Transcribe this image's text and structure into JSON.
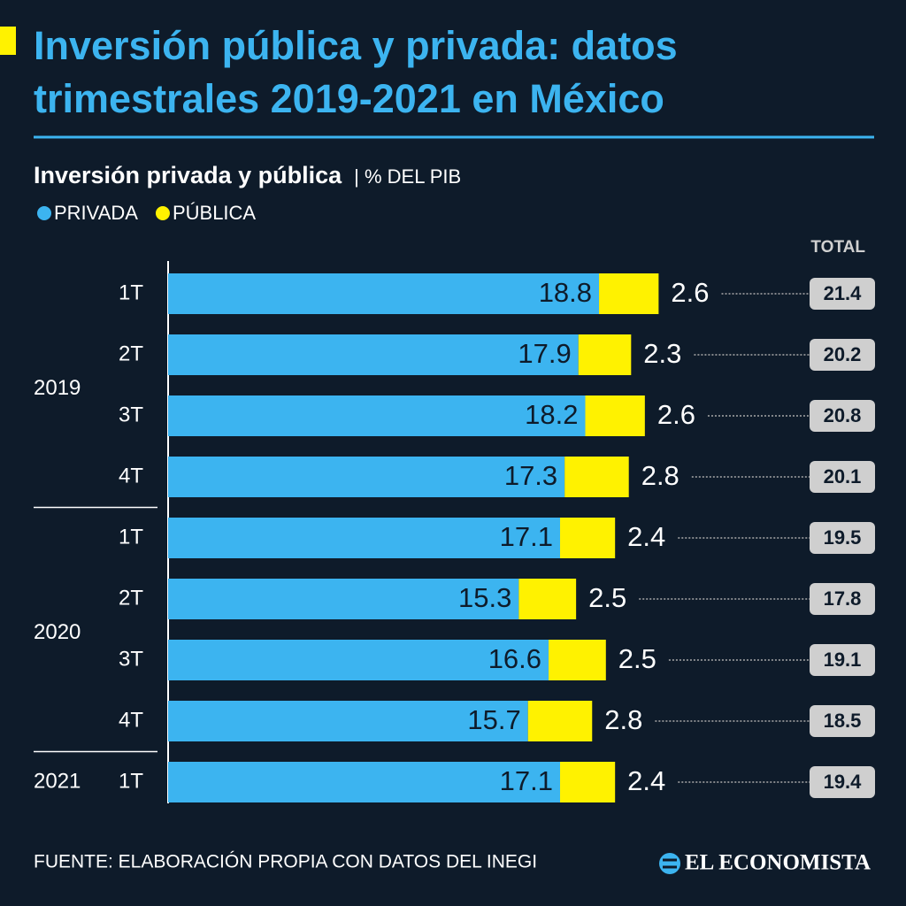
{
  "chart_data": {
    "type": "stacked-bar-horizontal",
    "title": "Inversión pública y privada: datos trimestrales 2019-2021 en México",
    "subtitle": "Inversión privada y pública",
    "unit": "| % DEL PIB",
    "groups": [
      {
        "name": "2019",
        "categories": [
          "1T",
          "2T",
          "3T",
          "4T"
        ]
      },
      {
        "name": "2020",
        "categories": [
          "1T",
          "2T",
          "3T",
          "4T"
        ]
      },
      {
        "name": "2021",
        "categories": [
          "1T"
        ]
      }
    ],
    "series": [
      {
        "name": "PRIVADA",
        "color": "#3cb4f0",
        "values": [
          18.8,
          17.9,
          18.2,
          17.3,
          17.1,
          15.3,
          16.6,
          15.7,
          17.1
        ]
      },
      {
        "name": "PÚBLICA",
        "color": "#fff200",
        "values": [
          2.6,
          2.3,
          2.6,
          2.8,
          2.4,
          2.5,
          2.5,
          2.8,
          2.4
        ]
      }
    ],
    "totals": {
      "name": "TOTAL",
      "values": [
        21.4,
        20.2,
        20.8,
        20.1,
        19.5,
        17.8,
        19.1,
        18.5,
        19.4
      ]
    },
    "xlim": [
      0,
      32
    ],
    "source": "FUENTE: ELABORACIÓN PROPIA CON DATOS DEL INEGI",
    "brand": "EL ECONOMISTA"
  }
}
